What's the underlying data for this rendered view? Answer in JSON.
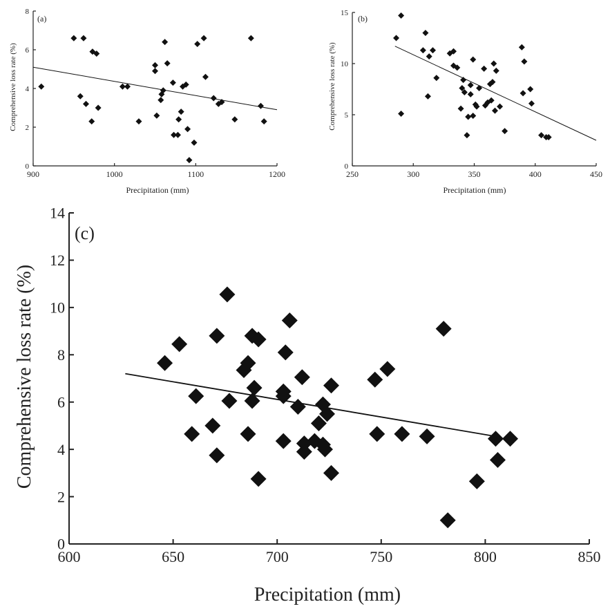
{
  "chart_data": [
    {
      "type": "scatter",
      "panel_label": "(a)",
      "xlabel": "Precipitation (mm)",
      "ylabel": "Comprehensive loss rate (%)",
      "xlim": [
        900,
        1200
      ],
      "ylim": [
        0,
        8
      ],
      "xticks": [
        900,
        1000,
        1100,
        1200
      ],
      "yticks": [
        0,
        2,
        4,
        6,
        8
      ],
      "trendline": {
        "x": [
          900,
          1200
        ],
        "y": [
          5.1,
          2.9
        ]
      },
      "points": [
        [
          910,
          4.1
        ],
        [
          950,
          6.6
        ],
        [
          958,
          3.6
        ],
        [
          962,
          6.6
        ],
        [
          965,
          3.2
        ],
        [
          972,
          2.3
        ],
        [
          973,
          5.9
        ],
        [
          978,
          5.8
        ],
        [
          980,
          3.0
        ],
        [
          1010,
          4.1
        ],
        [
          1016,
          4.1
        ],
        [
          1030,
          2.3
        ],
        [
          1050,
          5.2
        ],
        [
          1050,
          4.9
        ],
        [
          1052,
          2.6
        ],
        [
          1057,
          3.4
        ],
        [
          1058,
          3.7
        ],
        [
          1060,
          3.9
        ],
        [
          1062,
          6.4
        ],
        [
          1065,
          5.3
        ],
        [
          1072,
          4.3
        ],
        [
          1073,
          1.6
        ],
        [
          1078,
          1.6
        ],
        [
          1079,
          2.4
        ],
        [
          1082,
          2.8
        ],
        [
          1084,
          4.1
        ],
        [
          1088,
          4.2
        ],
        [
          1090,
          1.9
        ],
        [
          1092,
          0.3
        ],
        [
          1098,
          1.2
        ],
        [
          1102,
          6.3
        ],
        [
          1110,
          6.6
        ],
        [
          1112,
          4.6
        ],
        [
          1122,
          3.5
        ],
        [
          1128,
          3.2
        ],
        [
          1132,
          3.3
        ],
        [
          1148,
          2.4
        ],
        [
          1168,
          6.6
        ],
        [
          1180,
          3.1
        ],
        [
          1184,
          2.3
        ]
      ]
    },
    {
      "type": "scatter",
      "panel_label": "(b)",
      "xlabel": "Precipitation (mm)",
      "ylabel": "Comprehensive loss rate (%)",
      "xlim": [
        250,
        450
      ],
      "ylim": [
        0,
        15
      ],
      "xticks": [
        250,
        300,
        350,
        400,
        450
      ],
      "yticks": [
        0,
        5,
        10,
        15
      ],
      "trendline": {
        "x": [
          285,
          450
        ],
        "y": [
          11.7,
          2.5
        ]
      },
      "points": [
        [
          286,
          12.5
        ],
        [
          290,
          14.7
        ],
        [
          290,
          5.1
        ],
        [
          308,
          11.3
        ],
        [
          310,
          13.0
        ],
        [
          312,
          6.8
        ],
        [
          313,
          10.7
        ],
        [
          316,
          11.3
        ],
        [
          319,
          8.6
        ],
        [
          330,
          11.0
        ],
        [
          333,
          11.2
        ],
        [
          333,
          9.8
        ],
        [
          336,
          9.6
        ],
        [
          339,
          5.6
        ],
        [
          340,
          7.6
        ],
        [
          341,
          8.4
        ],
        [
          342,
          7.2
        ],
        [
          344,
          3.0
        ],
        [
          345,
          4.8
        ],
        [
          347,
          7.9
        ],
        [
          347,
          7.0
        ],
        [
          349,
          4.9
        ],
        [
          349,
          10.4
        ],
        [
          351,
          6.0
        ],
        [
          352,
          5.8
        ],
        [
          354,
          7.6
        ],
        [
          358,
          9.5
        ],
        [
          359,
          5.9
        ],
        [
          361,
          6.2
        ],
        [
          363,
          8.0
        ],
        [
          364,
          6.4
        ],
        [
          365,
          8.2
        ],
        [
          366,
          10.0
        ],
        [
          367,
          5.4
        ],
        [
          368,
          9.3
        ],
        [
          371,
          5.8
        ],
        [
          375,
          3.4
        ],
        [
          389,
          11.6
        ],
        [
          390,
          7.1
        ],
        [
          391,
          10.2
        ],
        [
          396,
          7.5
        ],
        [
          397,
          6.1
        ],
        [
          405,
          3.0
        ],
        [
          409,
          2.8
        ],
        [
          411,
          2.8
        ]
      ]
    },
    {
      "type": "scatter",
      "panel_label": "(c)",
      "xlabel": "Precipitation (mm)",
      "ylabel": "Comprehensive loss rate (%)",
      "xlim": [
        600,
        850
      ],
      "ylim": [
        0,
        14
      ],
      "xticks": [
        600,
        650,
        700,
        750,
        800,
        850
      ],
      "yticks": [
        0,
        2,
        4,
        6,
        8,
        10,
        12,
        14
      ],
      "trendline": {
        "x": [
          627,
          805
        ],
        "y": [
          7.2,
          4.55
        ]
      },
      "points": [
        [
          646,
          7.65
        ],
        [
          653,
          8.45
        ],
        [
          659,
          4.65
        ],
        [
          661,
          6.25
        ],
        [
          669,
          5.0
        ],
        [
          671,
          8.8
        ],
        [
          671,
          3.75
        ],
        [
          676,
          10.55
        ],
        [
          677,
          6.05
        ],
        [
          684,
          7.35
        ],
        [
          686,
          4.65
        ],
        [
          686,
          7.65
        ],
        [
          688,
          8.8
        ],
        [
          688,
          6.05
        ],
        [
          689,
          6.6
        ],
        [
          691,
          8.65
        ],
        [
          691,
          2.75
        ],
        [
          703,
          4.35
        ],
        [
          703,
          6.45
        ],
        [
          703,
          6.25
        ],
        [
          704,
          8.1
        ],
        [
          706,
          9.45
        ],
        [
          710,
          5.8
        ],
        [
          712,
          7.05
        ],
        [
          713,
          3.9
        ],
        [
          713,
          4.25
        ],
        [
          718,
          4.35
        ],
        [
          720,
          5.1
        ],
        [
          722,
          5.9
        ],
        [
          722,
          4.2
        ],
        [
          723,
          4.0
        ],
        [
          724,
          5.5
        ],
        [
          726,
          6.7
        ],
        [
          726,
          3.0
        ],
        [
          747,
          6.95
        ],
        [
          748,
          4.65
        ],
        [
          753,
          7.4
        ],
        [
          760,
          4.65
        ],
        [
          772,
          4.55
        ],
        [
          780,
          9.1
        ],
        [
          782,
          1.0
        ],
        [
          796,
          2.65
        ],
        [
          805,
          4.45
        ],
        [
          806,
          3.55
        ],
        [
          812,
          4.45
        ]
      ]
    }
  ]
}
